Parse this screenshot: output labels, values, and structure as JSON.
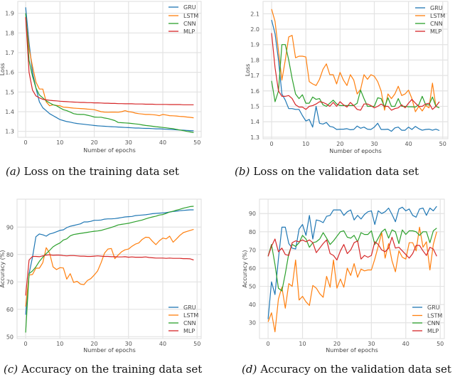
{
  "series_colors": {
    "GRU": "#1f77b4",
    "LSTM": "#ff7f0e",
    "CNN": "#2ca02c",
    "MLP": "#d62728"
  },
  "chart_data": [
    {
      "type": "line",
      "caption_label": "(a)",
      "caption": "Loss on the training data set",
      "xlabel": "Number of epochs",
      "ylabel": "Loss",
      "grid": true,
      "legend": "top-right",
      "xlim": [
        -2.3,
        51.2
      ],
      "ylim": [
        1.27,
        1.96
      ],
      "xticks": [
        0,
        10,
        20,
        30,
        40,
        50
      ],
      "yticks": [
        "1.3",
        "1.4",
        "1.5",
        "1.6",
        "1.7",
        "1.8",
        "1.9"
      ],
      "series": [
        {
          "name": "GRU",
          "values": [
            1.93,
            1.75,
            1.6,
            1.52,
            1.45,
            1.42,
            1.405,
            1.39,
            1.38,
            1.37,
            1.36,
            1.355,
            1.35,
            1.347,
            1.343,
            1.34,
            1.338,
            1.336,
            1.334,
            1.332,
            1.33,
            1.328,
            1.327,
            1.326,
            1.325,
            1.324,
            1.323,
            1.322,
            1.321,
            1.32,
            1.319,
            1.318,
            1.317,
            1.317,
            1.316,
            1.315,
            1.315,
            1.314,
            1.313,
            1.313,
            1.312,
            1.311,
            1.31,
            1.309,
            1.308,
            1.307,
            1.306,
            1.305,
            1.304,
            1.303
          ]
        },
        {
          "name": "LSTM",
          "values": [
            1.88,
            1.72,
            1.63,
            1.55,
            1.515,
            1.515,
            1.45,
            1.43,
            1.435,
            1.432,
            1.43,
            1.423,
            1.422,
            1.42,
            1.418,
            1.417,
            1.416,
            1.415,
            1.413,
            1.412,
            1.41,
            1.405,
            1.4,
            1.398,
            1.397,
            1.398,
            1.398,
            1.397,
            1.4,
            1.405,
            1.4,
            1.398,
            1.393,
            1.39,
            1.388,
            1.386,
            1.386,
            1.385,
            1.383,
            1.38,
            1.386,
            1.383,
            1.38,
            1.379,
            1.378,
            1.376,
            1.375,
            1.373,
            1.371,
            1.369
          ]
        },
        {
          "name": "CNN",
          "values": [
            1.9,
            1.66,
            1.58,
            1.52,
            1.485,
            1.47,
            1.455,
            1.445,
            1.435,
            1.43,
            1.42,
            1.41,
            1.405,
            1.398,
            1.39,
            1.387,
            1.386,
            1.386,
            1.382,
            1.378,
            1.373,
            1.372,
            1.372,
            1.368,
            1.365,
            1.36,
            1.355,
            1.345,
            1.344,
            1.343,
            1.342,
            1.34,
            1.338,
            1.336,
            1.333,
            1.33,
            1.328,
            1.326,
            1.324,
            1.322,
            1.32,
            1.318,
            1.316,
            1.314,
            1.31,
            1.307,
            1.304,
            1.3,
            1.297,
            1.294
          ]
        },
        {
          "name": "MLP",
          "values": [
            1.88,
            1.6,
            1.51,
            1.48,
            1.47,
            1.463,
            1.46,
            1.458,
            1.456,
            1.455,
            1.453,
            1.452,
            1.451,
            1.45,
            1.449,
            1.448,
            1.447,
            1.447,
            1.446,
            1.446,
            1.445,
            1.445,
            1.444,
            1.443,
            1.443,
            1.442,
            1.442,
            1.441,
            1.441,
            1.44,
            1.44,
            1.44,
            1.439,
            1.439,
            1.439,
            1.438,
            1.438,
            1.438,
            1.437,
            1.437,
            1.437,
            1.437,
            1.436,
            1.436,
            1.436,
            1.436,
            1.435,
            1.435,
            1.435,
            1.435
          ]
        }
      ]
    },
    {
      "type": "line",
      "caption_label": "(b)",
      "caption": "Loss on the validation data set",
      "xlabel": "Number of epochs",
      "ylabel": "Loss",
      "grid": true,
      "legend": "top-right",
      "xlim": [
        -2.5,
        51.5
      ],
      "ylim": [
        1.29,
        2.18
      ],
      "xticks": [
        0,
        10,
        20,
        30,
        40,
        50
      ],
      "yticks": [
        "1.3",
        "1.4",
        "1.5",
        "1.6",
        "1.7",
        "1.8",
        "1.9",
        "2.0",
        "2.1"
      ],
      "series": [
        {
          "name": "GRU",
          "values": [
            2.06,
            1.97,
            1.8,
            1.58,
            1.54,
            1.485,
            1.485,
            1.48,
            1.48,
            1.44,
            1.405,
            1.415,
            1.365,
            1.5,
            1.39,
            1.385,
            1.395,
            1.37,
            1.365,
            1.35,
            1.352,
            1.352,
            1.355,
            1.348,
            1.35,
            1.372,
            1.358,
            1.365,
            1.352,
            1.35,
            1.365,
            1.39,
            1.35,
            1.35,
            1.352,
            1.338,
            1.36,
            1.365,
            1.345,
            1.345,
            1.365,
            1.35,
            1.37,
            1.355,
            1.345,
            1.35,
            1.352,
            1.345,
            1.352,
            1.343
          ]
        },
        {
          "name": "LSTM",
          "values": [
            2.13,
            2.05,
            1.86,
            1.67,
            1.8,
            1.95,
            1.96,
            1.815,
            1.825,
            1.825,
            1.82,
            1.66,
            1.645,
            1.635,
            1.675,
            1.74,
            1.775,
            1.705,
            1.705,
            1.645,
            1.72,
            1.67,
            1.635,
            1.705,
            1.67,
            1.58,
            1.61,
            1.705,
            1.675,
            1.705,
            1.695,
            1.66,
            1.6,
            1.475,
            1.58,
            1.55,
            1.58,
            1.63,
            1.57,
            1.58,
            1.605,
            1.55,
            1.465,
            1.5,
            1.47,
            1.505,
            1.49,
            1.65,
            1.5,
            1.49
          ]
        },
        {
          "name": "CNN",
          "values": [
            1.665,
            1.53,
            1.6,
            1.9,
            1.9,
            1.8,
            1.68,
            1.58,
            1.55,
            1.575,
            1.52,
            1.52,
            1.56,
            1.545,
            1.55,
            1.51,
            1.5,
            1.52,
            1.54,
            1.515,
            1.505,
            1.505,
            1.505,
            1.505,
            1.505,
            1.52,
            1.605,
            1.55,
            1.5,
            1.5,
            1.5,
            1.555,
            1.55,
            1.495,
            1.555,
            1.5,
            1.5,
            1.55,
            1.5,
            1.5,
            1.497,
            1.497,
            1.495,
            1.51,
            1.565,
            1.51,
            1.51,
            1.56,
            1.5,
            1.49
          ]
        },
        {
          "name": "MLP",
          "values": [
            1.975,
            1.75,
            1.6,
            1.565,
            1.565,
            1.57,
            1.55,
            1.51,
            1.495,
            1.495,
            1.48,
            1.5,
            1.505,
            1.515,
            1.53,
            1.525,
            1.515,
            1.5,
            1.525,
            1.5,
            1.53,
            1.51,
            1.495,
            1.525,
            1.505,
            1.48,
            1.475,
            1.515,
            1.515,
            1.505,
            1.49,
            1.5,
            1.515,
            1.5,
            1.5,
            1.475,
            1.485,
            1.49,
            1.51,
            1.49,
            1.52,
            1.545,
            1.52,
            1.5,
            1.5,
            1.515,
            1.52,
            1.48,
            1.5,
            1.53
          ]
        }
      ]
    },
    {
      "type": "line",
      "caption_label": "(c)",
      "caption": "Accuracy on the training data set",
      "xlabel": "Number of epochs",
      "ylabel": "Accuracy (%)",
      "grid": true,
      "legend": "bottom-right",
      "xlim": [
        -2.5,
        51.2
      ],
      "ylim": [
        49.3,
        100.2
      ],
      "xticks": [
        0,
        10,
        20,
        30,
        40,
        50
      ],
      "yticks": [
        "50",
        "60",
        "70",
        "80",
        "90"
      ],
      "series": [
        {
          "name": "GRU",
          "values": [
            58,
            73,
            79,
            86.5,
            87.5,
            87.2,
            86.7,
            87.5,
            87.8,
            88.3,
            88.8,
            89,
            89.8,
            90.3,
            90.6,
            90.9,
            91.2,
            91.9,
            91.9,
            92.1,
            92.5,
            92.5,
            92.6,
            92.9,
            93,
            93,
            93.1,
            93.3,
            93.5,
            93.7,
            93.8,
            93.9,
            94.2,
            94.3,
            94.4,
            94.5,
            94.7,
            94.9,
            95,
            95.1,
            95.2,
            95.3,
            95.5,
            95.7,
            95.8,
            96,
            96.1,
            96.2,
            96.3,
            96.3
          ]
        },
        {
          "name": "LSTM",
          "values": [
            61,
            72.5,
            72.7,
            75,
            75,
            77,
            82.5,
            80.5,
            75.5,
            74.5,
            75.2,
            75.1,
            71,
            73,
            69.8,
            70.2,
            69.2,
            69,
            70.5,
            71.2,
            72.5,
            74,
            77,
            80.5,
            82,
            82.2,
            78.5,
            79.8,
            81,
            81.7,
            82,
            83,
            83.8,
            84.2,
            85.5,
            86.3,
            86.2,
            84.8,
            83.6,
            85,
            86,
            85.7,
            86.7,
            84.5,
            85.7,
            87,
            88,
            88.4,
            88.8,
            89.2
          ]
        },
        {
          "name": "CNN",
          "values": [
            51.5,
            73,
            74,
            75.5,
            77.5,
            79,
            80.3,
            81.5,
            82.8,
            83.6,
            84.2,
            85.3,
            85.7,
            86.8,
            87.3,
            87.5,
            87.7,
            87.9,
            88.1,
            88.3,
            88.5,
            88.6,
            88.8,
            89.2,
            89.5,
            89.9,
            90.3,
            90.8,
            91,
            91.2,
            91.4,
            91.7,
            92,
            92.3,
            92.6,
            93,
            93.4,
            93.7,
            94,
            94.4,
            94.6,
            95,
            95.5,
            95.8,
            96.2,
            96.5,
            96.9,
            97.2,
            97.5,
            97.6
          ]
        },
        {
          "name": "MLP",
          "values": [
            65,
            78,
            79.3,
            79.3,
            79.2,
            79.5,
            79.8,
            79.9,
            79.7,
            79.8,
            79.8,
            79.6,
            79.5,
            79.6,
            79.6,
            79.5,
            79.4,
            79.4,
            79.3,
            79.3,
            79.4,
            79.5,
            79.4,
            79.3,
            79.3,
            79.2,
            79.2,
            79.1,
            79.1,
            79.2,
            79,
            79.1,
            79,
            79,
            79,
            79.1,
            78.9,
            78.8,
            78.7,
            78.7,
            78.7,
            78.6,
            78.7,
            78.6,
            78.6,
            78.6,
            78.5,
            78.5,
            78.4,
            78
          ]
        }
      ]
    },
    {
      "type": "line",
      "caption_label": "(d)",
      "caption": "Accuracy on the validation data set",
      "xlabel": "Number of epochs",
      "ylabel": "Accuracy (%)",
      "grid": true,
      "legend": "bottom-right",
      "xlim": [
        -2.5,
        51.2
      ],
      "ylim": [
        21.3,
        97.9
      ],
      "xticks": [
        0,
        10,
        20,
        30,
        40,
        50
      ],
      "yticks": [
        "30",
        "40",
        "50",
        "60",
        "70",
        "80",
        "90"
      ],
      "series": [
        {
          "name": "GRU",
          "values": [
            32,
            52.5,
            45.5,
            65,
            82.5,
            82.5,
            73.5,
            71,
            70.5,
            81.5,
            84,
            78,
            89,
            76,
            86.5,
            86,
            85,
            88.5,
            89,
            92,
            92,
            92,
            89,
            91,
            92,
            86.5,
            89,
            87,
            89.5,
            91,
            91.5,
            84,
            91.5,
            90,
            91,
            93,
            89.5,
            85.5,
            92.5,
            93.5,
            91.5,
            92.5,
            89,
            88,
            92.5,
            93,
            89,
            93,
            91.5,
            94
          ]
        },
        {
          "name": "LSTM",
          "values": [
            30.5,
            35.5,
            25,
            43,
            49.5,
            38,
            51.5,
            50,
            64.5,
            42.5,
            44.5,
            41.5,
            39.5,
            50.5,
            49,
            46,
            44,
            55.5,
            49.5,
            64.5,
            49,
            54,
            49.5,
            60,
            56,
            62.5,
            55,
            59.5,
            58.5,
            59,
            59,
            65,
            72,
            79.5,
            65.5,
            73.5,
            64,
            58,
            69.5,
            66,
            65,
            74,
            74,
            69.5,
            82.5,
            71.5,
            74.5,
            59,
            73,
            80
          ]
        },
        {
          "name": "CNN",
          "values": [
            66.5,
            73,
            62,
            49,
            47.5,
            57,
            68,
            73,
            72,
            74,
            78,
            76,
            71.5,
            74,
            74.5,
            76,
            79.5,
            76.5,
            73,
            75,
            77.5,
            80,
            80.5,
            77,
            76.5,
            78,
            74.5,
            79.5,
            78.5,
            78.5,
            80.5,
            73,
            76.5,
            80,
            81.5,
            76.5,
            81,
            80,
            73.5,
            81,
            78.5,
            80.5,
            80.5,
            80,
            78,
            80,
            80,
            74,
            80.5,
            82
          ]
        },
        {
          "name": "MLP",
          "values": [
            66.5,
            72,
            76,
            69,
            71,
            67.5,
            67,
            74,
            75,
            74.5,
            75.5,
            74.5,
            75.5,
            74,
            68.5,
            71,
            73.5,
            75.5,
            68,
            67,
            64.5,
            69.5,
            73,
            68,
            70,
            74,
            75,
            65,
            67,
            66,
            67,
            74.5,
            73,
            70,
            69,
            71,
            77,
            71,
            71.5,
            69.5,
            67.5,
            65.5,
            68,
            72.5,
            72.5,
            69.5,
            67,
            71.5,
            70.5,
            66.5
          ]
        }
      ]
    }
  ]
}
